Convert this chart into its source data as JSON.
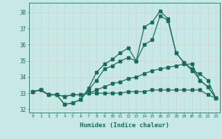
{
  "xlabel": "Humidex (Indice chaleur)",
  "ylabel": "",
  "bg_color": "#c8e8e8",
  "line_color": "#1a6b5a",
  "grid_color": "#b0d0d0",
  "xlim": [
    -0.5,
    23.5
  ],
  "ylim": [
    31.8,
    38.6
  ],
  "yticks": [
    32,
    33,
    34,
    35,
    36,
    37,
    38
  ],
  "xticks": [
    0,
    1,
    2,
    3,
    4,
    5,
    6,
    7,
    8,
    9,
    10,
    11,
    12,
    13,
    14,
    15,
    16,
    17,
    18,
    19,
    20,
    21,
    22,
    23
  ],
  "line1_y": [
    33.1,
    33.2,
    32.9,
    32.9,
    32.3,
    32.4,
    32.6,
    33.3,
    34.3,
    34.8,
    35.1,
    35.5,
    35.8,
    35.0,
    37.1,
    37.4,
    38.1,
    37.6,
    35.5,
    34.9,
    34.4,
    34.2,
    33.8,
    32.7
  ],
  "line2_y": [
    33.1,
    33.2,
    32.9,
    32.9,
    32.3,
    32.4,
    32.6,
    33.2,
    33.8,
    34.5,
    34.7,
    35.0,
    35.2,
    35.0,
    36.0,
    36.3,
    37.8,
    37.5,
    35.5,
    34.9,
    34.5,
    33.8,
    33.4,
    32.7
  ],
  "line3_y": [
    33.1,
    33.2,
    32.9,
    32.9,
    32.8,
    32.9,
    32.9,
    33.0,
    33.2,
    33.4,
    33.6,
    33.7,
    33.9,
    34.0,
    34.2,
    34.4,
    34.5,
    34.6,
    34.7,
    34.8,
    34.8,
    33.8,
    33.4,
    32.7
  ],
  "line4_y": [
    33.1,
    33.2,
    32.9,
    32.9,
    32.8,
    32.9,
    32.9,
    33.0,
    33.0,
    33.0,
    33.0,
    33.0,
    33.1,
    33.1,
    33.1,
    33.2,
    33.2,
    33.2,
    33.2,
    33.2,
    33.2,
    33.2,
    32.9,
    32.7
  ]
}
